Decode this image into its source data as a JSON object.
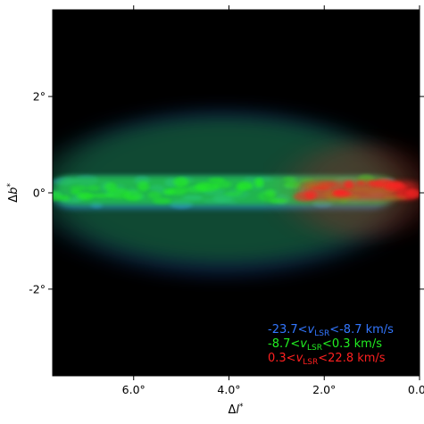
{
  "chart_data": {
    "type": "heatmap",
    "title": "",
    "xlabel": "Δl*",
    "ylabel": "Δb*",
    "xlim": [
      7.7,
      0.0
    ],
    "ylim": [
      -3.8,
      3.8
    ],
    "x_inverted": true,
    "x_ticks": [
      {
        "value": 6.0,
        "label": "6.0°"
      },
      {
        "value": 4.0,
        "label": "4.0°"
      },
      {
        "value": 2.0,
        "label": "2.0°"
      },
      {
        "value": 0.0,
        "label": "0.0°"
      }
    ],
    "y_ticks": [
      {
        "value": 2,
        "label": "2°"
      },
      {
        "value": 0,
        "label": "0°"
      },
      {
        "value": -2,
        "label": "-2°"
      }
    ],
    "background_color": "#000000",
    "legend_placement": "bottom-right",
    "series": [
      {
        "name": "-23.7<vLSR<-8.7 km/s",
        "prefix": "-23.7<",
        "v": "v",
        "sub": "LSR",
        "suffix": "<-8.7 km/s",
        "color": "#3377ff",
        "emission_band": {
          "b_center": 0.0,
          "b_halfwidth": 0.35,
          "l_range": [
            7.7,
            0.6
          ]
        }
      },
      {
        "name": "-8.7<vLSR<0.3 km/s",
        "prefix": "-8.7<",
        "v": "v",
        "sub": "LSR",
        "suffix": "<0.3 km/s",
        "color": "#22ee22",
        "emission_band": {
          "b_center": 0.05,
          "b_halfwidth": 0.3,
          "l_range": [
            7.7,
            0.5
          ]
        }
      },
      {
        "name": "0.3<vLSR<22.8 km/s",
        "prefix": "0.3<",
        "v": "v",
        "sub": "LSR",
        "suffix": "<22.8 km/s",
        "color": "#ff2020",
        "emission_band": {
          "b_center": 0.05,
          "b_halfwidth": 0.2,
          "l_range": [
            2.5,
            0.0
          ]
        }
      }
    ]
  }
}
